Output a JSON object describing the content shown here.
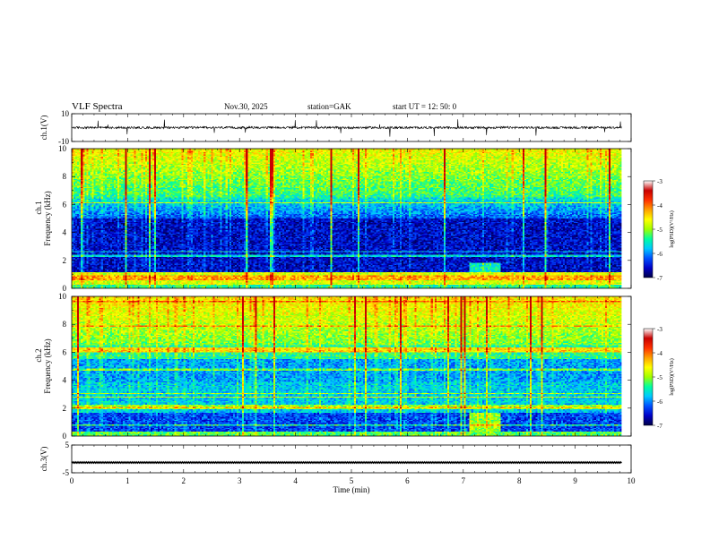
{
  "header": {
    "title": "VLF  Spectra",
    "date": "Nov.30, 2025",
    "station": "station=GAK",
    "start": "start  UT  =   12: 50: 0"
  },
  "colors": {
    "colorbar": [
      "#000046",
      "#0000c8",
      "#0050ff",
      "#00c8ff",
      "#00ffa0",
      "#a0ff00",
      "#ffff00",
      "#ffa000",
      "#ff3000",
      "#c80000",
      "#ffffff"
    ],
    "waveform": "#000000"
  },
  "chart_data": [
    {
      "type": "line",
      "name": "ch1-waveform",
      "ylabel": "ch.1(V)",
      "ylim": [
        -10,
        10
      ],
      "yticks": [
        10,
        -10
      ],
      "xlim": [
        0,
        10
      ],
      "baseline_value": 0,
      "extent_min": 9.83
    },
    {
      "type": "heatmap",
      "name": "ch1-spectrogram",
      "ylabel_line1": "ch.1",
      "ylabel_line2": "Frequency (kHz)",
      "ylim": [
        0,
        10
      ],
      "yticks": [
        "0",
        "2",
        "4",
        "6",
        "8",
        "10"
      ],
      "xlim": [
        0,
        10
      ],
      "extent_min": 9.83,
      "colorbar": {
        "label": "log(PSD)(V²/Hz)",
        "range": [
          -7,
          -3
        ],
        "ticks": [
          "-3",
          "-4",
          "-5",
          "-6",
          "-7"
        ]
      }
    },
    {
      "type": "heatmap",
      "name": "ch2-spectrogram",
      "ylabel_line1": "ch.2",
      "ylabel_line2": "Frequency (kHz)",
      "ylim": [
        0,
        10
      ],
      "yticks": [
        "0",
        "2",
        "4",
        "6",
        "8",
        "10"
      ],
      "xlim": [
        0,
        10
      ],
      "extent_min": 9.83,
      "colorbar": {
        "label": "log(PSD)(V²/Hz)",
        "range": [
          -7,
          -3
        ],
        "ticks": [
          "-3",
          "-4",
          "-5",
          "-6",
          "-7"
        ]
      }
    },
    {
      "type": "line",
      "name": "ch3-waveform",
      "ylabel": "ch.3(V)",
      "ylim": [
        -5,
        5
      ],
      "yticks": [
        5,
        -5
      ],
      "xlim": [
        0,
        10
      ],
      "baseline_value": -1.3,
      "extent_min": 9.83,
      "xticks": [
        "0",
        "1",
        "2",
        "3",
        "4",
        "5",
        "6",
        "7",
        "8",
        "9",
        "10"
      ],
      "xlabel": "Time  (min)"
    }
  ]
}
